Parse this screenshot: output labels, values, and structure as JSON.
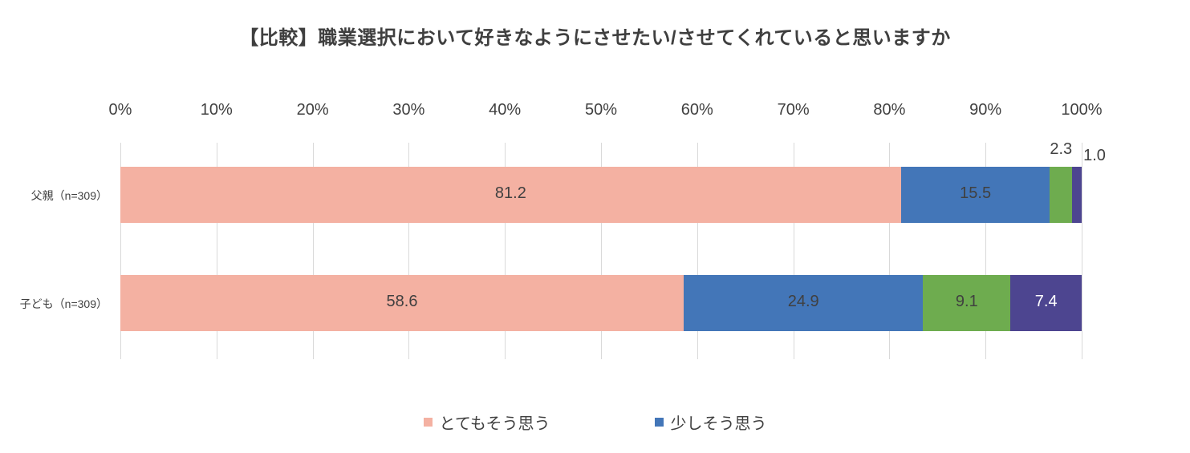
{
  "chart_data": {
    "type": "bar",
    "variant": "100-percent-stacked-horizontal",
    "title": "【比較】職業選択において好きなようにさせたい/させてくれていると思いますか",
    "categories": [
      "父親（n=309）",
      "子ども（n=309）"
    ],
    "series": [
      {
        "name": "とてもそう思う",
        "color": "#F4B1A2",
        "label_color": "#404040",
        "values": [
          81.2,
          58.6
        ]
      },
      {
        "name": "少しそう思う",
        "color": "#4376B8",
        "label_color": "#404040",
        "values": [
          15.5,
          24.9
        ]
      },
      {
        "name": "",
        "color": "#6EAC4F",
        "label_color": "#404040",
        "values": [
          2.3,
          9.1
        ]
      },
      {
        "name": "",
        "color": "#4D4590",
        "label_color": "#FFFFFF",
        "values": [
          1.0,
          7.4
        ]
      }
    ],
    "x_axis": {
      "ticks": [
        "0%",
        "10%",
        "20%",
        "30%",
        "40%",
        "50%",
        "60%",
        "70%",
        "80%",
        "90%",
        "100%"
      ],
      "min": 0,
      "max": 100,
      "position": "top"
    },
    "grid": true,
    "legend_position": "bottom",
    "legend": [
      {
        "label": "とてもそう思う",
        "color": "#F4B1A2"
      },
      {
        "label": "少しそう思う",
        "color": "#4376B8"
      }
    ]
  },
  "colors": {
    "title": "#3F3F3F",
    "axis_text": "#404040",
    "gridline": "#D9D9D9",
    "background": "#FFFFFF"
  }
}
